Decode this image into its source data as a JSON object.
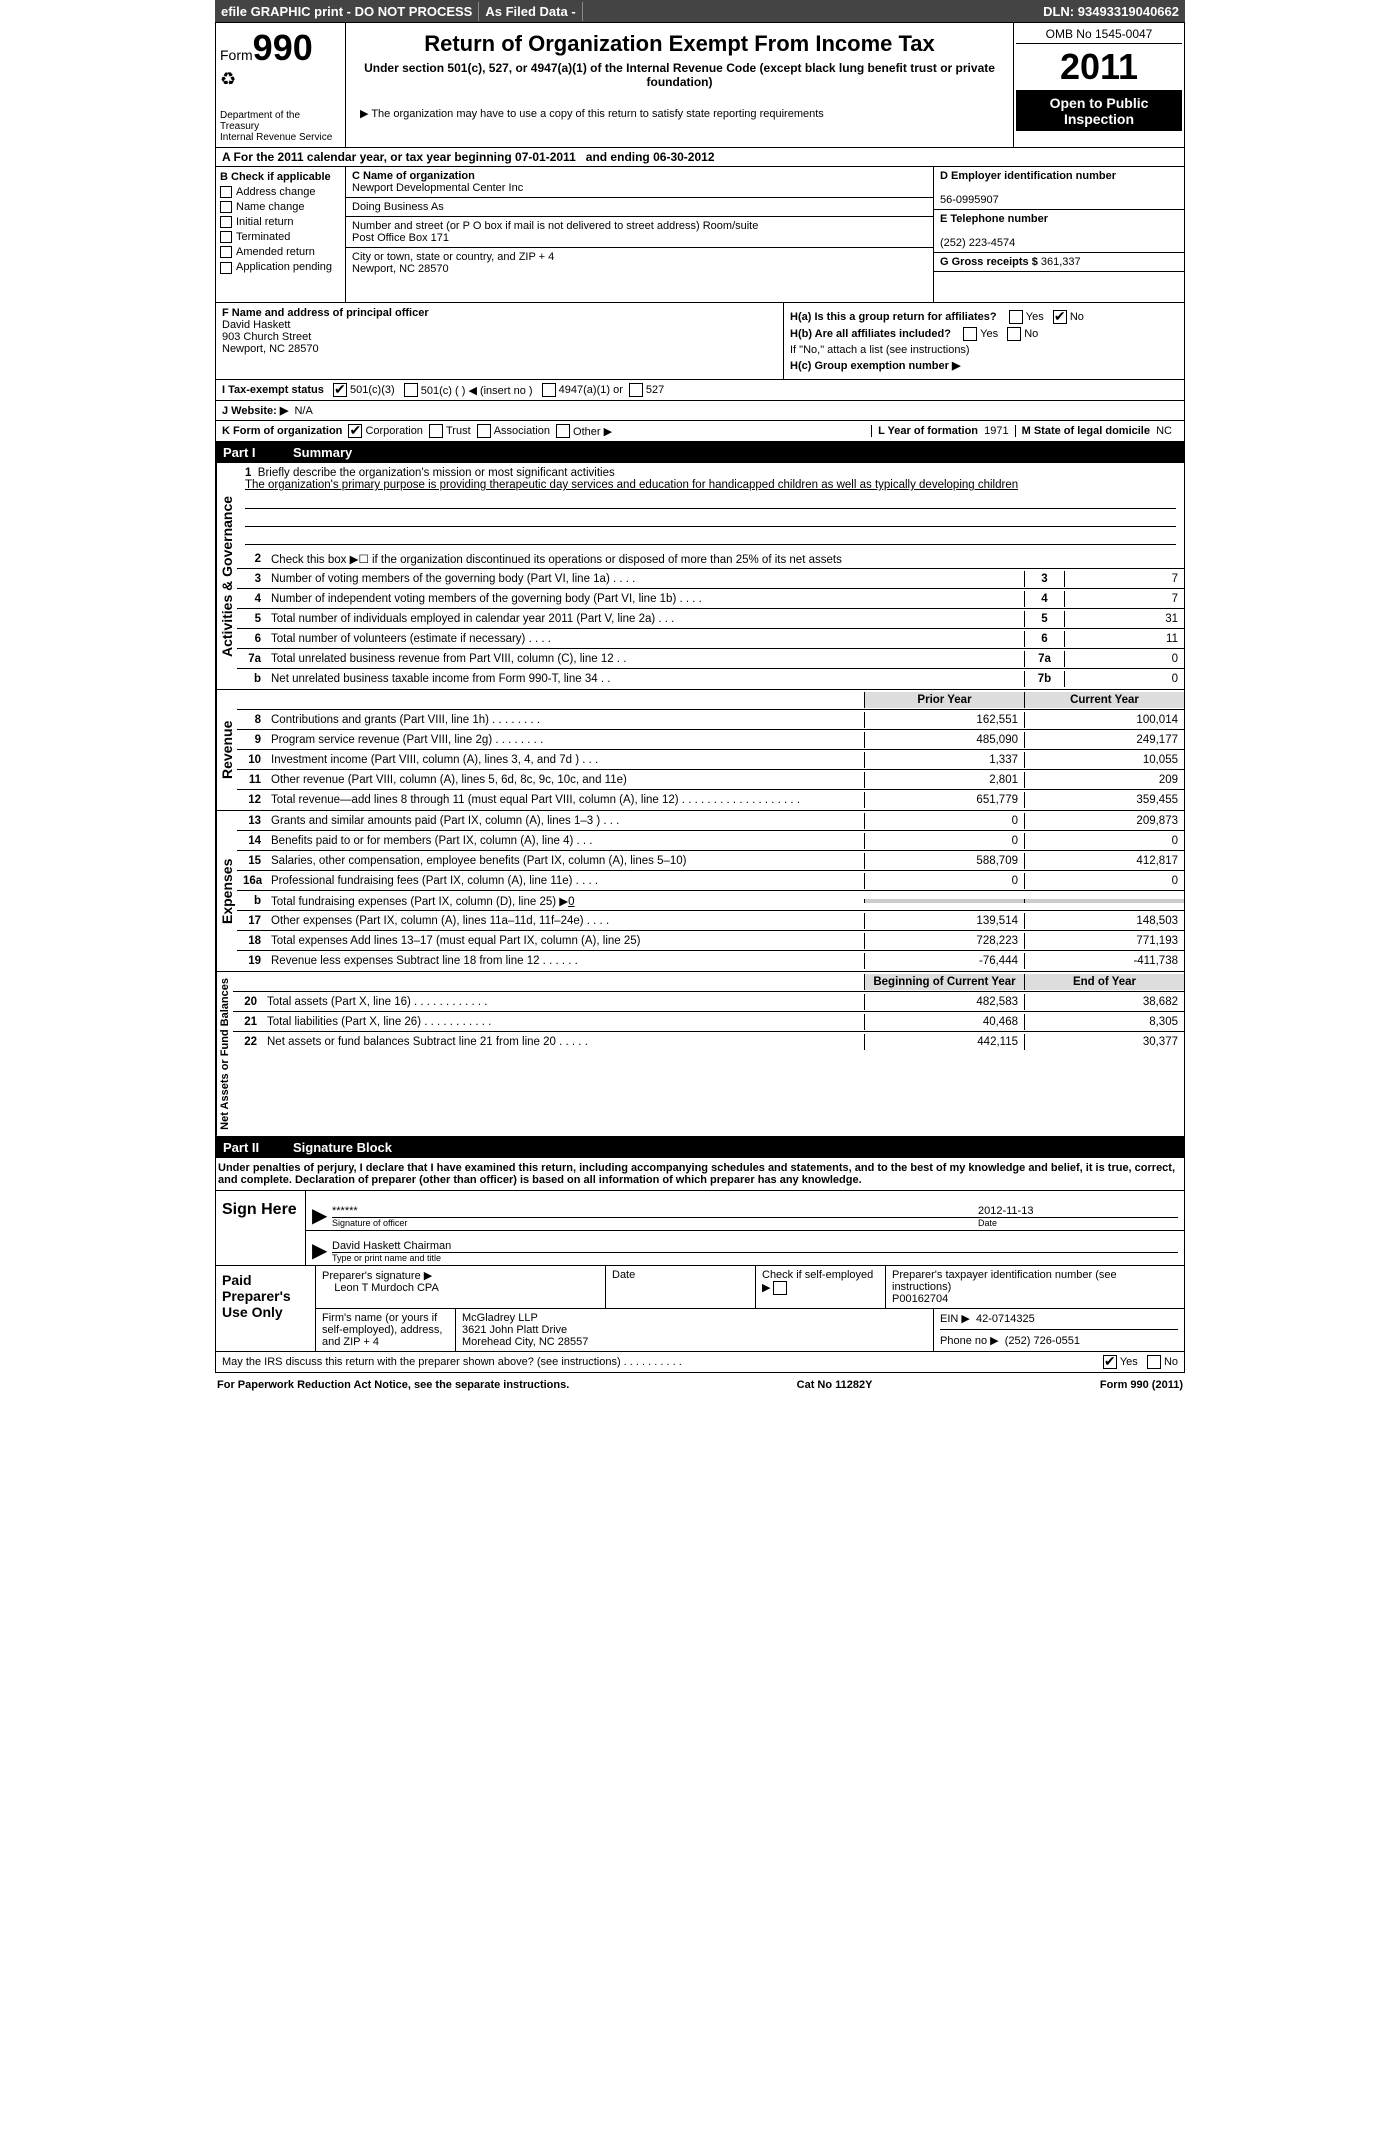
{
  "topbar": {
    "efile": "efile GRAPHIC print - DO NOT PROCESS",
    "asfiled": "As Filed Data -",
    "dln_label": "DLN:",
    "dln": "93493319040662"
  },
  "header": {
    "form_word": "Form",
    "form_num": "990",
    "dept1": "Department of the Treasury",
    "dept2": "Internal Revenue Service",
    "title": "Return of Organization Exempt From Income Tax",
    "subtitle": "Under section 501(c), 527, or 4947(a)(1) of the Internal Revenue Code (except black lung benefit trust or private foundation)",
    "note": "▶ The organization may have to use a copy of this return to satisfy state reporting requirements",
    "omb": "OMB No 1545-0047",
    "year": "2011",
    "open1": "Open to Public",
    "open2": "Inspection"
  },
  "rowA": {
    "label": "A  For the 2011 calendar year, or tax year beginning",
    "begin": "07-01-2011",
    "mid": "and ending",
    "end": "06-30-2012"
  },
  "B": {
    "label": "B  Check if applicable",
    "opts": [
      "Address change",
      "Name change",
      "Initial return",
      "Terminated",
      "Amended return",
      "Application pending"
    ]
  },
  "C": {
    "name_label": "C Name of organization",
    "name": "Newport Developmental Center Inc",
    "dba_label": "Doing Business As",
    "dba": "",
    "street_label": "Number and street (or P O  box if mail is not delivered to street address)   Room/suite",
    "street": "Post Office Box 171",
    "city_label": "City or town, state or country, and ZIP + 4",
    "city": "Newport, NC  28570"
  },
  "D": {
    "ein_label": "D Employer identification number",
    "ein": "56-0995907",
    "phone_label": "E Telephone number",
    "phone": "(252) 223-4574",
    "gross_label": "G Gross receipts $",
    "gross": "361,337"
  },
  "F": {
    "label": "F  Name and address of principal officer",
    "name": "David Haskett",
    "street": "903 Church Street",
    "city": "Newport, NC  28570"
  },
  "H": {
    "a_label": "H(a)  Is this a group return for affiliates?",
    "b_label": "H(b)  Are all affiliates included?",
    "b_note": "If \"No,\" attach a list  (see instructions)",
    "c_label": "H(c)  Group exemption number ▶"
  },
  "I": {
    "label": "I  Tax-exempt status",
    "opts": [
      "501(c)(3)",
      "501(c) (  ) ◀ (insert no )",
      "4947(a)(1) or",
      "527"
    ]
  },
  "J": {
    "label": "J  Website: ▶",
    "value": "N/A"
  },
  "K": {
    "label": "K Form of organization",
    "opts": [
      "Corporation",
      "Trust",
      "Association",
      "Other ▶"
    ],
    "L_label": "L Year of formation",
    "L_val": "1971",
    "M_label": "M State of legal domicile",
    "M_val": "NC"
  },
  "part1": {
    "num": "Part I",
    "title": "Summary"
  },
  "mission": {
    "num": "1",
    "label": "Briefly describe the organization's mission or most significant activities",
    "text": "The organization's primary purpose is providing therapeutic day services and education for handicapped children as well as typically developing children"
  },
  "gov_lines": [
    {
      "n": "2",
      "t": "Check this box ▶☐ if the organization discontinued its operations or disposed of more than 25% of its net assets",
      "box": "",
      "v": ""
    },
    {
      "n": "3",
      "t": "Number of voting members of the governing body (Part VI, line 1a)   .   .   .   .",
      "box": "3",
      "v": "7"
    },
    {
      "n": "4",
      "t": "Number of independent voting members of the governing body (Part VI, line 1b)   .   .   .   .",
      "box": "4",
      "v": "7"
    },
    {
      "n": "5",
      "t": "Total number of individuals employed in calendar year 2011 (Part V, line 2a)   .   .   .",
      "box": "5",
      "v": "31"
    },
    {
      "n": "6",
      "t": "Total number of volunteers (estimate if necessary)   .   .   .   .",
      "box": "6",
      "v": "11"
    },
    {
      "n": "7a",
      "t": "Total unrelated business revenue from Part VIII, column (C), line 12   .   .",
      "box": "7a",
      "v": "0"
    },
    {
      "n": "b",
      "t": "Net unrelated business taxable income from Form 990-T, line 34   .   .",
      "box": "7b",
      "v": "0"
    }
  ],
  "two_col_header": {
    "prior": "Prior Year",
    "current": "Current Year"
  },
  "revenue": [
    {
      "n": "8",
      "t": "Contributions and grants (Part VIII, line 1h)   .   .   .   .   .   .   .   .",
      "p": "162,551",
      "c": "100,014"
    },
    {
      "n": "9",
      "t": "Program service revenue (Part VIII, line 2g)   .   .   .   .   .   .   .   .",
      "p": "485,090",
      "c": "249,177"
    },
    {
      "n": "10",
      "t": "Investment income (Part VIII, column (A), lines 3, 4, and 7d )   .   .   .",
      "p": "1,337",
      "c": "10,055"
    },
    {
      "n": "11",
      "t": "Other revenue (Part VIII, column (A), lines 5, 6d, 8c, 9c, 10c, and 11e)",
      "p": "2,801",
      "c": "209"
    },
    {
      "n": "12",
      "t": "Total revenue—add lines 8 through 11 (must equal Part VIII, column (A), line 12)   .   .   .   .   .   .   .   .   .   .   .   .   .   .   .   .   .   .   .",
      "p": "651,779",
      "c": "359,455"
    }
  ],
  "expenses": [
    {
      "n": "13",
      "t": "Grants and similar amounts paid (Part IX, column (A), lines 1–3 )   .   .   .",
      "p": "0",
      "c": "209,873"
    },
    {
      "n": "14",
      "t": "Benefits paid to or for members (Part IX, column (A), line 4)   .   .   .",
      "p": "0",
      "c": "0"
    },
    {
      "n": "15",
      "t": "Salaries, other compensation, employee benefits (Part IX, column (A), lines 5–10)",
      "p": "588,709",
      "c": "412,817"
    },
    {
      "n": "16a",
      "t": "Professional fundraising fees (Part IX, column (A), line 11e)   .   .   .   .",
      "p": "0",
      "c": "0"
    },
    {
      "n": "b",
      "t": "Total fundraising expenses (Part IX, column (D), line 25) ▶",
      "p": "",
      "c": "",
      "fund": "0"
    },
    {
      "n": "17",
      "t": "Other expenses (Part IX, column (A), lines 11a–11d, 11f–24e)   .   .   .   .",
      "p": "139,514",
      "c": "148,503"
    },
    {
      "n": "18",
      "t": "Total expenses  Add lines 13–17 (must equal Part IX, column (A), line 25)",
      "p": "728,223",
      "c": "771,193"
    },
    {
      "n": "19",
      "t": "Revenue less expenses  Subtract line 18 from line 12   .   .   .   .   .   .",
      "p": "-76,444",
      "c": "-411,738"
    }
  ],
  "net_header": {
    "begin": "Beginning of Current Year",
    "end": "End of Year"
  },
  "netassets": [
    {
      "n": "20",
      "t": "Total assets (Part X, line 16)   .   .   .   .   .   .   .   .   .   .   .   .",
      "p": "482,583",
      "c": "38,682"
    },
    {
      "n": "21",
      "t": "Total liabilities (Part X, line 26)   .   .   .   .   .   .   .   .   .   .   .",
      "p": "40,468",
      "c": "8,305"
    },
    {
      "n": "22",
      "t": "Net assets or fund balances  Subtract line 21 from line 20   .   .   .   .   .",
      "p": "442,115",
      "c": "30,377"
    }
  ],
  "part2": {
    "num": "Part II",
    "title": "Signature Block"
  },
  "perjury": "Under penalties of perjury, I declare that I have examined this return, including accompanying schedules and statements, and to the best of my knowledge and belief, it is true, correct, and complete. Declaration of preparer (other than officer) is based on all information of which preparer has any knowledge.",
  "sign": {
    "here": "Sign Here",
    "stars": "******",
    "sig_of": "Signature of officer",
    "date": "2012-11-13",
    "date_label": "Date",
    "name": "David Haskett Chairman",
    "name_label": "Type or print name and title"
  },
  "prep": {
    "label": "Paid Preparer's Use Only",
    "sig_label": "Preparer's signature ▶",
    "sig": "Leon T Murdoch CPA",
    "date_label": "Date",
    "self_label": "Check if self-employed ▶",
    "ptin_label": "Preparer's taxpayer identification number (see instructions)",
    "ptin": "P00162704",
    "firm_label": "Firm's name (or yours if self-employed), address, and ZIP + 4",
    "firm": "McGladrey LLP",
    "firm_addr1": "3621 John Platt Drive",
    "firm_addr2": "Morehead City, NC  28557",
    "ein_label": "EIN ▶",
    "ein": "42-0714325",
    "phone_label": "Phone no  ▶",
    "phone": "(252) 726-0551"
  },
  "discuss": "May the IRS discuss this return with the preparer shown above? (see instructions)   .   .   .   .   .   .   .   .   .   .",
  "footer": {
    "left": "For Paperwork Reduction Act Notice, see the separate instructions.",
    "mid": "Cat No 11282Y",
    "right": "Form 990 (2011)"
  },
  "sidelabels": {
    "gov": "Activities & Governance",
    "rev": "Revenue",
    "exp": "Expenses",
    "net": "Net Assets or Fund Balances"
  },
  "yesno": {
    "yes": "Yes",
    "no": "No"
  }
}
